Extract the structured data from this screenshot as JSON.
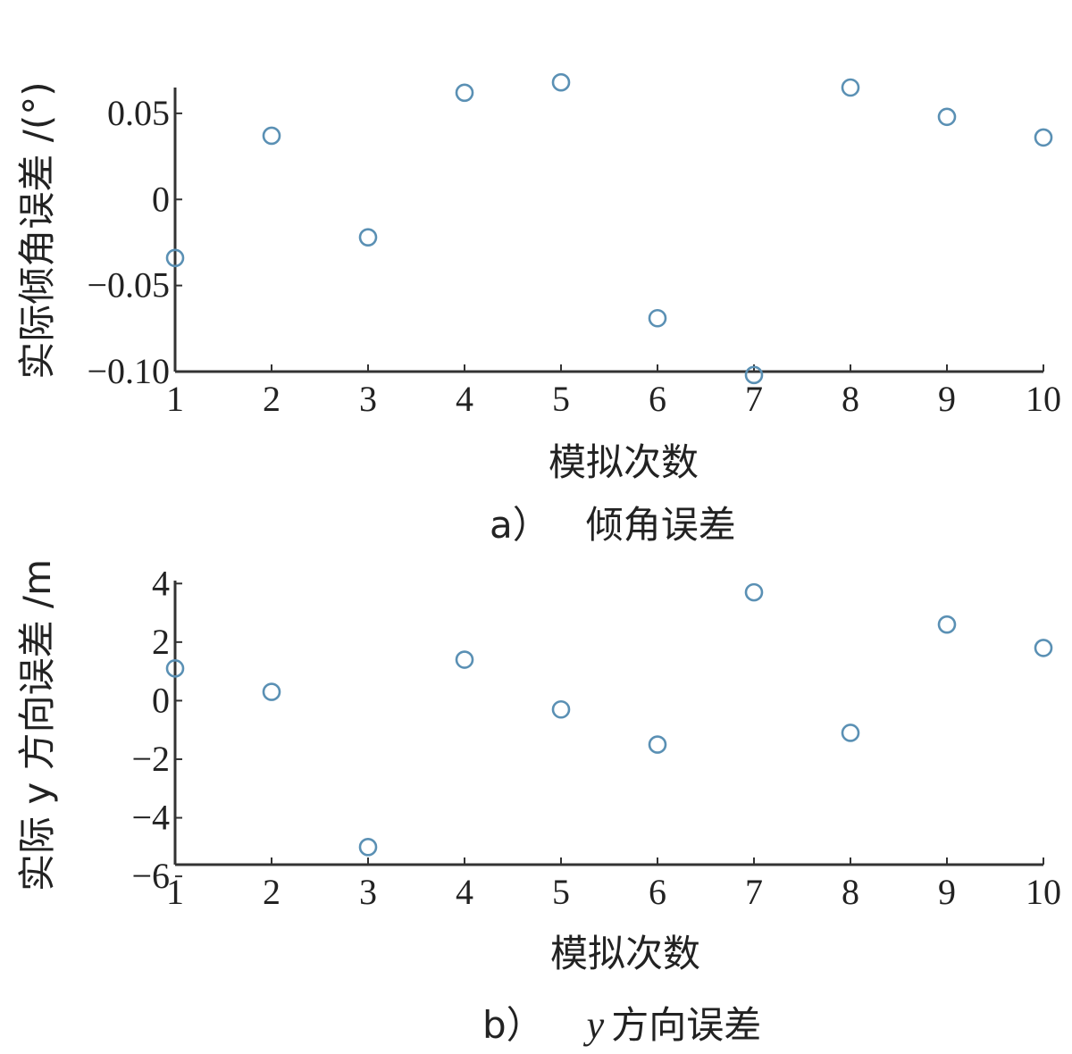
{
  "colors": {
    "marker": "#5a90b4",
    "axis": "#333333",
    "text": "#222222"
  },
  "chart_data": [
    {
      "type": "scatter",
      "marker": "circle-open",
      "caption_label": "a）",
      "caption_text": "倾角误差",
      "xlabel": "模拟次数",
      "ylabel": "实际倾角误差 /(°)",
      "x": [
        1,
        2,
        3,
        4,
        5,
        6,
        7,
        8,
        9,
        10
      ],
      "y": [
        -0.034,
        0.037,
        -0.022,
        0.062,
        0.068,
        -0.069,
        -0.102,
        0.065,
        0.048,
        0.036
      ],
      "xticks": [
        "1",
        "2",
        "3",
        "4",
        "5",
        "6",
        "7",
        "8",
        "9",
        "10"
      ],
      "yticks": [
        "0.05",
        "0",
        "−0.05",
        "−0.10"
      ],
      "ytick_values": [
        0.05,
        0,
        -0.05,
        -0.1
      ],
      "xlim": [
        1,
        10
      ],
      "ylim": [
        -0.1,
        0.065
      ],
      "grid": false
    },
    {
      "type": "scatter",
      "marker": "circle-open",
      "caption_label": "b）",
      "caption_text_italic": "y",
      "caption_text": "方向误差",
      "xlabel": "模拟次数",
      "ylabel": "实际 y 方向误差 /m",
      "x": [
        1,
        2,
        3,
        4,
        5,
        6,
        7,
        8,
        9,
        10
      ],
      "y": [
        1.1,
        0.3,
        -5.0,
        1.4,
        -0.3,
        -1.5,
        3.7,
        -1.1,
        2.6,
        1.8
      ],
      "xticks": [
        "1",
        "2",
        "3",
        "4",
        "5",
        "6",
        "7",
        "8",
        "9",
        "10"
      ],
      "yticks": [
        "4",
        "2",
        "0",
        "−2",
        "−4",
        "−6"
      ],
      "ytick_values": [
        4,
        2,
        0,
        -2,
        -4,
        -6
      ],
      "xlim": [
        1,
        10
      ],
      "ylim": [
        -5.6,
        4.1
      ],
      "grid": false
    }
  ]
}
